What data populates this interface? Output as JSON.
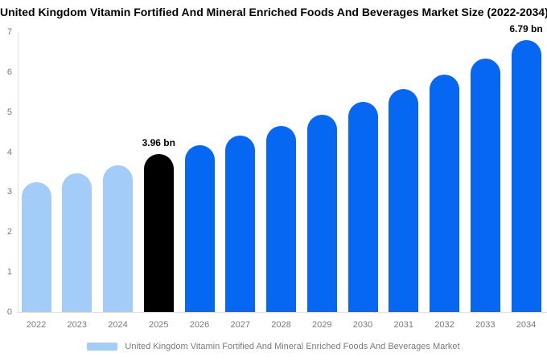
{
  "chart_data": {
    "type": "bar",
    "title": "United Kingdom Vitamin Fortified And Mineral Enriched Foods And Beverages Market Size (2022-2034)",
    "unit_suffix": "bn",
    "categories": [
      "2022",
      "2023",
      "2024",
      "2025",
      "2026",
      "2027",
      "2028",
      "2029",
      "2030",
      "2031",
      "2032",
      "2033",
      "2034"
    ],
    "values": [
      3.25,
      3.46,
      3.68,
      3.96,
      4.18,
      4.42,
      4.66,
      4.94,
      5.26,
      5.58,
      5.94,
      6.33,
      6.79
    ],
    "value_labels": [
      "",
      "",
      "",
      "3.96 bn",
      "",
      "",
      "",
      "",
      "",
      "",
      "",
      "",
      "6.79 bn"
    ],
    "bar_colors": [
      "#a3cdf8",
      "#a3cdf8",
      "#a3cdf8",
      "#000000",
      "#0667f2",
      "#0667f2",
      "#0667f2",
      "#0667f2",
      "#0667f2",
      "#0667f2",
      "#0667f2",
      "#0667f2",
      "#0667f2"
    ],
    "yticks": [
      0,
      1,
      2,
      3,
      4,
      5,
      6,
      7
    ],
    "ylim": [
      0,
      7
    ],
    "grid": false,
    "xlabel": "",
    "ylabel": "",
    "legend": {
      "position": "bottom",
      "label": "United Kingdom Vitamin Fortified And Mineral Enriched Foods And Beverages Market",
      "swatch_color": "#a3cdf8"
    },
    "colors": {
      "historical": "#a3cdf8",
      "highlight": "#000000",
      "forecast": "#0667f2",
      "axis_line": "#e2e2e2",
      "tick_text": "#7a7a7a"
    }
  }
}
